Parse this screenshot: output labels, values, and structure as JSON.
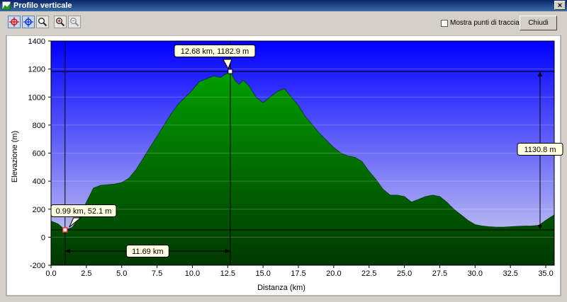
{
  "window": {
    "title": "Profilo verticale",
    "close_glyph": "×"
  },
  "toolbar": {
    "tools": [
      {
        "name": "select-point-tool",
        "icon": "crosshair-red-icon"
      },
      {
        "name": "select-range-tool",
        "icon": "crosshair-blue-icon"
      },
      {
        "name": "zoom-tool",
        "icon": "magnifier-icon"
      },
      {
        "name": "zoom-in-tool",
        "icon": "zoom-in-icon"
      },
      {
        "name": "zoom-out-tool",
        "icon": "zoom-out-icon"
      }
    ],
    "show_track_points_label": "Mostra punti di traccia",
    "show_track_points_checked": false,
    "close_label": "Chiudi"
  },
  "chart_data": {
    "type": "area",
    "xlabel": "Distanza    (km)",
    "ylabel": "Elevazione (m)",
    "xlim": [
      0,
      35.6
    ],
    "ylim": [
      -200,
      1400
    ],
    "x_ticks": [
      "0.0",
      "2.5",
      "5.0",
      "7.5",
      "10.0",
      "12.5",
      "15.0",
      "17.5",
      "20.0",
      "22.5",
      "25.0",
      "27.5",
      "30.0",
      "32.5",
      "35.0"
    ],
    "y_ticks": [
      "1400",
      "1200",
      "1000",
      "800",
      "600",
      "400",
      "200",
      "0",
      "-200"
    ],
    "grid": true,
    "background": {
      "top": "#0000ff",
      "bottom": "#d8d8f0"
    },
    "fill": {
      "top": "#00a000",
      "bottom": "#003800"
    },
    "x": [
      0,
      0.5,
      0.99,
      1.5,
      2.0,
      2.5,
      3.0,
      3.5,
      4.0,
      4.5,
      5.0,
      5.5,
      6.0,
      6.5,
      7.0,
      7.5,
      8.0,
      8.5,
      9.0,
      9.5,
      10.0,
      10.5,
      11.0,
      11.5,
      12.0,
      12.3,
      12.68,
      13.0,
      13.3,
      13.6,
      14.0,
      14.5,
      15.0,
      15.5,
      16.0,
      16.5,
      17.0,
      17.5,
      18.0,
      18.5,
      19.0,
      19.5,
      20.0,
      20.5,
      21.0,
      21.5,
      22.0,
      22.5,
      23.0,
      23.5,
      24.0,
      24.5,
      25.0,
      25.5,
      26.0,
      26.5,
      27.0,
      27.5,
      28.0,
      28.5,
      29.0,
      29.5,
      30.0,
      30.5,
      31.0,
      31.5,
      32.0,
      32.5,
      33.0,
      33.5,
      34.0,
      34.5,
      35.0,
      35.6
    ],
    "y": [
      115,
      95,
      52,
      70,
      140,
      250,
      350,
      370,
      375,
      380,
      390,
      420,
      480,
      560,
      640,
      720,
      800,
      880,
      950,
      1000,
      1050,
      1110,
      1130,
      1150,
      1140,
      1160,
      1183,
      1120,
      1090,
      1120,
      1080,
      1000,
      960,
      1000,
      1040,
      1060,
      1000,
      940,
      860,
      800,
      740,
      690,
      640,
      600,
      580,
      570,
      540,
      470,
      410,
      340,
      300,
      300,
      290,
      250,
      270,
      290,
      300,
      290,
      250,
      200,
      160,
      120,
      90,
      80,
      75,
      72,
      72,
      75,
      78,
      80,
      80,
      85,
      120,
      160
    ],
    "markers": [
      {
        "x": 0.99,
        "y": 52.1,
        "label": "0.99 km, 52.1 m",
        "color": "#ff3030"
      },
      {
        "x": 12.68,
        "y": 1182.9,
        "label": "12.68 km, 1182.9 m",
        "color": "#ffffff"
      }
    ],
    "distance_label": "11.69 km",
    "elevation_gain_label": "1130.8 m"
  }
}
